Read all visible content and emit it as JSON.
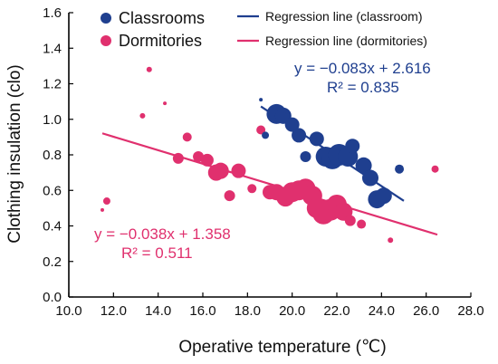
{
  "chart_data": {
    "type": "scatter",
    "xlabel": "Operative temperature (℃)",
    "ylabel": "Clothing insulation (clo)",
    "xlim": [
      10.0,
      28.0
    ],
    "ylim": [
      0.0,
      1.6
    ],
    "xticks": [
      "10.0",
      "12.0",
      "14.0",
      "16.0",
      "18.0",
      "20.0",
      "22.0",
      "24.0",
      "26.0",
      "28.0"
    ],
    "yticks": [
      "0.0",
      "0.2",
      "0.4",
      "0.6",
      "0.8",
      "1.0",
      "1.2",
      "1.4",
      "1.6"
    ],
    "grid": false,
    "legend": {
      "placement": "top",
      "entries": [
        "Classrooms",
        "Dormitories",
        "Regression line (classroom)",
        "Regression line (dormitories)"
      ]
    },
    "colors": {
      "classrooms": "#1f3f8f",
      "dormitories": "#e0306e"
    },
    "series": [
      {
        "name": "Classrooms",
        "marker_size_note": "bubble size varies",
        "points": [
          {
            "x": 18.6,
            "y": 1.11,
            "s": 2
          },
          {
            "x": 18.8,
            "y": 0.91,
            "s": 4
          },
          {
            "x": 19.3,
            "y": 1.03,
            "s": 11
          },
          {
            "x": 19.6,
            "y": 1.02,
            "s": 9
          },
          {
            "x": 20.0,
            "y": 0.97,
            "s": 8
          },
          {
            "x": 20.3,
            "y": 0.91,
            "s": 8
          },
          {
            "x": 20.6,
            "y": 0.79,
            "s": 6
          },
          {
            "x": 21.1,
            "y": 0.89,
            "s": 8
          },
          {
            "x": 21.5,
            "y": 0.79,
            "s": 11
          },
          {
            "x": 21.8,
            "y": 0.78,
            "s": 12
          },
          {
            "x": 22.1,
            "y": 0.8,
            "s": 12
          },
          {
            "x": 22.5,
            "y": 0.79,
            "s": 11
          },
          {
            "x": 22.7,
            "y": 0.85,
            "s": 8
          },
          {
            "x": 23.2,
            "y": 0.74,
            "s": 9
          },
          {
            "x": 23.5,
            "y": 0.67,
            "s": 9
          },
          {
            "x": 23.8,
            "y": 0.55,
            "s": 10
          },
          {
            "x": 24.1,
            "y": 0.57,
            "s": 9
          },
          {
            "x": 24.8,
            "y": 0.72,
            "s": 5
          }
        ],
        "regression": {
          "equation": "y = −0.083x + 2.616",
          "r2": "R² = 0.835",
          "slope": -0.083,
          "intercept": 2.616,
          "x_range": [
            18.6,
            25.0
          ]
        }
      },
      {
        "name": "Dormitories",
        "marker_size_note": "bubble size varies",
        "points": [
          {
            "x": 11.5,
            "y": 0.49,
            "s": 2
          },
          {
            "x": 11.7,
            "y": 0.54,
            "s": 4
          },
          {
            "x": 13.3,
            "y": 1.02,
            "s": 3
          },
          {
            "x": 13.6,
            "y": 1.28,
            "s": 3
          },
          {
            "x": 14.3,
            "y": 1.09,
            "s": 2
          },
          {
            "x": 14.9,
            "y": 0.78,
            "s": 6
          },
          {
            "x": 15.3,
            "y": 0.9,
            "s": 5
          },
          {
            "x": 15.8,
            "y": 0.79,
            "s": 6
          },
          {
            "x": 16.2,
            "y": 0.77,
            "s": 7
          },
          {
            "x": 16.6,
            "y": 0.7,
            "s": 9
          },
          {
            "x": 16.8,
            "y": 0.71,
            "s": 9
          },
          {
            "x": 17.2,
            "y": 0.57,
            "s": 6
          },
          {
            "x": 17.6,
            "y": 0.71,
            "s": 8
          },
          {
            "x": 18.2,
            "y": 0.61,
            "s": 5
          },
          {
            "x": 18.6,
            "y": 0.94,
            "s": 5
          },
          {
            "x": 19.0,
            "y": 0.59,
            "s": 8
          },
          {
            "x": 19.3,
            "y": 0.59,
            "s": 9
          },
          {
            "x": 19.7,
            "y": 0.56,
            "s": 10
          },
          {
            "x": 20.0,
            "y": 0.59,
            "s": 11
          },
          {
            "x": 20.3,
            "y": 0.6,
            "s": 11
          },
          {
            "x": 20.6,
            "y": 0.61,
            "s": 11
          },
          {
            "x": 20.9,
            "y": 0.57,
            "s": 11
          },
          {
            "x": 21.1,
            "y": 0.5,
            "s": 11
          },
          {
            "x": 21.4,
            "y": 0.47,
            "s": 12
          },
          {
            "x": 21.7,
            "y": 0.49,
            "s": 12
          },
          {
            "x": 22.0,
            "y": 0.52,
            "s": 11
          },
          {
            "x": 22.3,
            "y": 0.48,
            "s": 10
          },
          {
            "x": 22.6,
            "y": 0.43,
            "s": 6
          },
          {
            "x": 23.1,
            "y": 0.41,
            "s": 5
          },
          {
            "x": 24.4,
            "y": 0.32,
            "s": 3
          },
          {
            "x": 26.4,
            "y": 0.72,
            "s": 4
          }
        ],
        "regression": {
          "equation": "y = −0.038x + 1.358",
          "r2": "R² = 0.511",
          "slope": -0.038,
          "intercept": 1.358,
          "x_range": [
            11.5,
            26.5
          ]
        }
      }
    ]
  }
}
